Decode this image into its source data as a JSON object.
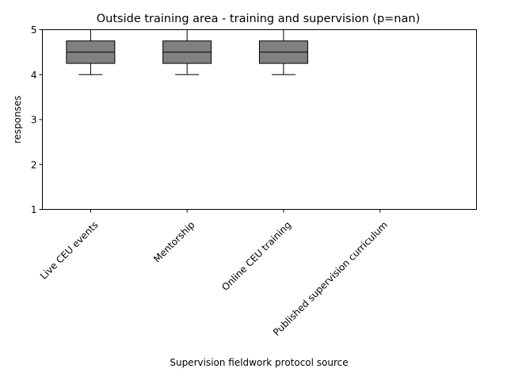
{
  "chart_data": {
    "type": "box",
    "title": "Outside training area - training and supervision (p=nan)",
    "xlabel": "Supervision fieldwork protocol source",
    "ylabel": "responses",
    "ylim": [
      1,
      5
    ],
    "yticks": [
      1,
      2,
      3,
      4,
      5
    ],
    "grid": false,
    "categories": [
      "Live CEU events",
      "Mentorship",
      "Online CEU training",
      "Published supervision curriculum"
    ],
    "boxes": [
      {
        "category": "Live CEU events",
        "whisker_low": 4,
        "q1": 4.25,
        "median": 4.5,
        "q3": 4.75,
        "whisker_high": 5
      },
      {
        "category": "Mentorship",
        "whisker_low": 4,
        "q1": 4.25,
        "median": 4.5,
        "q3": 4.75,
        "whisker_high": 5
      },
      {
        "category": "Online CEU training",
        "whisker_low": 4,
        "q1": 4.25,
        "median": 4.5,
        "q3": 4.75,
        "whisker_high": 5
      },
      {
        "category": "Published supervision curriculum",
        "whisker_low": null,
        "q1": null,
        "median": null,
        "q3": null,
        "whisker_high": null
      }
    ],
    "colors": {
      "box_fill": "#808080",
      "box_edge": "#000000",
      "median": "#000000"
    }
  }
}
